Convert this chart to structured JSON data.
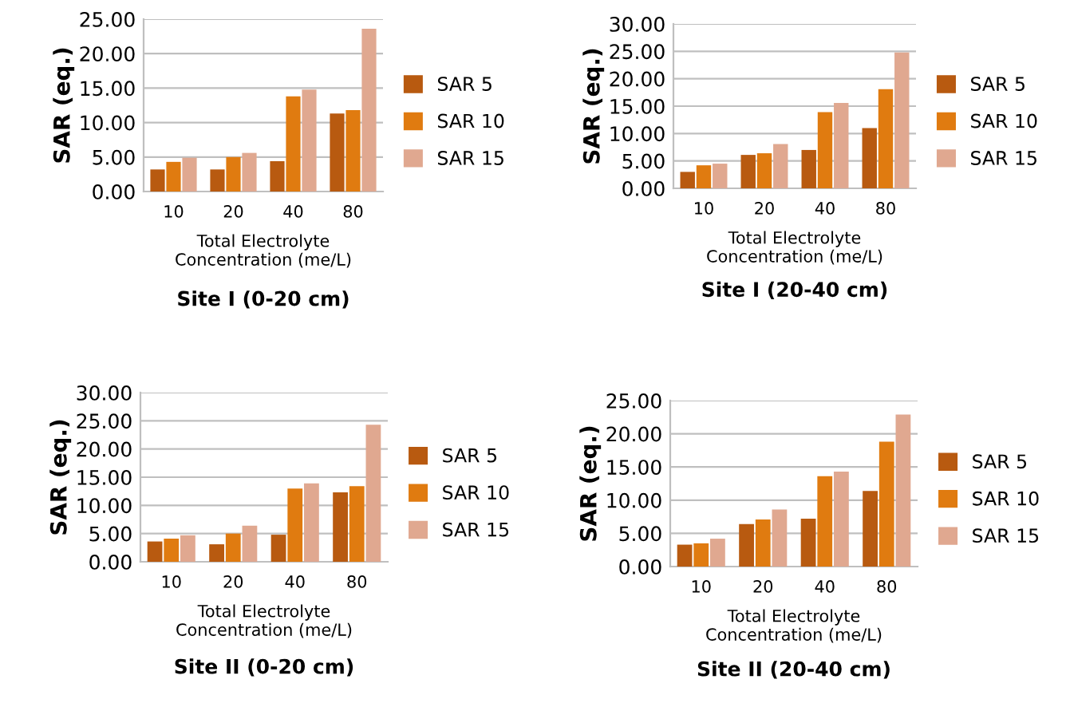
{
  "chart_data": [
    {
      "type": "bar",
      "title": "Site I (0-20 cm)",
      "xlabel": "Total Electrolyte\nConcentration (me/L)",
      "ylabel": "SAR (eq.)",
      "categories": [
        "10",
        "20",
        "40",
        "80"
      ],
      "series": [
        {
          "name": "SAR 5",
          "color": "#b85a10",
          "values": [
            3.2,
            3.2,
            4.4,
            11.3
          ]
        },
        {
          "name": "SAR 10",
          "color": "#e07b10",
          "values": [
            4.3,
            5.0,
            13.8,
            11.8
          ]
        },
        {
          "name": "SAR 15",
          "color": "#e0a890",
          "values": [
            4.9,
            5.6,
            14.8,
            23.6
          ]
        }
      ],
      "ylim": [
        0,
        25
      ],
      "yticks": [
        {
          "value": 0,
          "label": "0.00"
        },
        {
          "value": 5,
          "label": "5.00"
        },
        {
          "value": 10,
          "label": "10.00"
        },
        {
          "value": 15,
          "label": "15.00"
        },
        {
          "value": 20,
          "label": "20.00"
        },
        {
          "value": 25,
          "label": "25.00"
        }
      ],
      "grid": "y",
      "legend": "right"
    },
    {
      "type": "bar",
      "title": "Site I (20-40 cm)",
      "xlabel": "Total Electrolyte\nConcentration (me/L)",
      "ylabel": "SAR (eq.)",
      "categories": [
        "10",
        "20",
        "40",
        "80"
      ],
      "series": [
        {
          "name": "SAR 5",
          "color": "#b85a10",
          "values": [
            3.0,
            6.1,
            7.0,
            11.0
          ]
        },
        {
          "name": "SAR 10",
          "color": "#e07b10",
          "values": [
            4.2,
            6.4,
            13.9,
            18.1
          ]
        },
        {
          "name": "SAR 15",
          "color": "#e0a890",
          "values": [
            4.5,
            8.1,
            15.6,
            24.8
          ]
        }
      ],
      "ylim": [
        0,
        30
      ],
      "yticks": [
        {
          "value": 0,
          "label": "0.00"
        },
        {
          "value": 5,
          "label": "5.00"
        },
        {
          "value": 10,
          "label": "10.00"
        },
        {
          "value": 15,
          "label": "15.00"
        },
        {
          "value": 20,
          "label": "20.00"
        },
        {
          "value": 25,
          "label": "25.00"
        },
        {
          "value": 30,
          "label": "30.00"
        }
      ],
      "grid": "y",
      "legend": "right"
    },
    {
      "type": "bar",
      "title": "Site II (0-20 cm)",
      "xlabel": "Total Electrolyte\nConcentration (me/L)",
      "ylabel": "SAR (eq.)",
      "categories": [
        "10",
        "20",
        "40",
        "80"
      ],
      "series": [
        {
          "name": "SAR 5",
          "color": "#b85a10",
          "values": [
            3.6,
            3.1,
            4.8,
            12.3
          ]
        },
        {
          "name": "SAR 10",
          "color": "#e07b10",
          "values": [
            4.1,
            5.0,
            13.0,
            13.4
          ]
        },
        {
          "name": "SAR 15",
          "color": "#e0a890",
          "values": [
            4.7,
            6.4,
            13.9,
            24.3
          ]
        }
      ],
      "ylim": [
        0,
        30
      ],
      "yticks": [
        {
          "value": 0,
          "label": "0.00"
        },
        {
          "value": 5,
          "label": "5.00"
        },
        {
          "value": 10,
          "label": "10.00"
        },
        {
          "value": 15,
          "label": "15.00"
        },
        {
          "value": 20,
          "label": "20.00"
        },
        {
          "value": 25,
          "label": "25.00"
        },
        {
          "value": 30,
          "label": "30.00"
        }
      ],
      "grid": "y",
      "legend": "right"
    },
    {
      "type": "bar",
      "title": "Site II (20-40 cm)",
      "xlabel": "Total Electrolyte\nConcentration (me/L)",
      "ylabel": "SAR (eq.)",
      "categories": [
        "10",
        "20",
        "40",
        "80"
      ],
      "series": [
        {
          "name": "SAR 5",
          "color": "#b85a10",
          "values": [
            3.3,
            6.4,
            7.2,
            11.4
          ]
        },
        {
          "name": "SAR 10",
          "color": "#e07b10",
          "values": [
            3.5,
            7.1,
            13.6,
            18.8
          ]
        },
        {
          "name": "SAR 15",
          "color": "#e0a890",
          "values": [
            4.2,
            8.6,
            14.3,
            22.9
          ]
        }
      ],
      "ylim": [
        0,
        25
      ],
      "yticks": [
        {
          "value": 0,
          "label": "0.00"
        },
        {
          "value": 5,
          "label": "5.00"
        },
        {
          "value": 10,
          "label": "10.00"
        },
        {
          "value": 15,
          "label": "15.00"
        },
        {
          "value": 20,
          "label": "20.00"
        },
        {
          "value": 25,
          "label": "25.00"
        }
      ],
      "grid": "y",
      "legend": "right"
    }
  ]
}
